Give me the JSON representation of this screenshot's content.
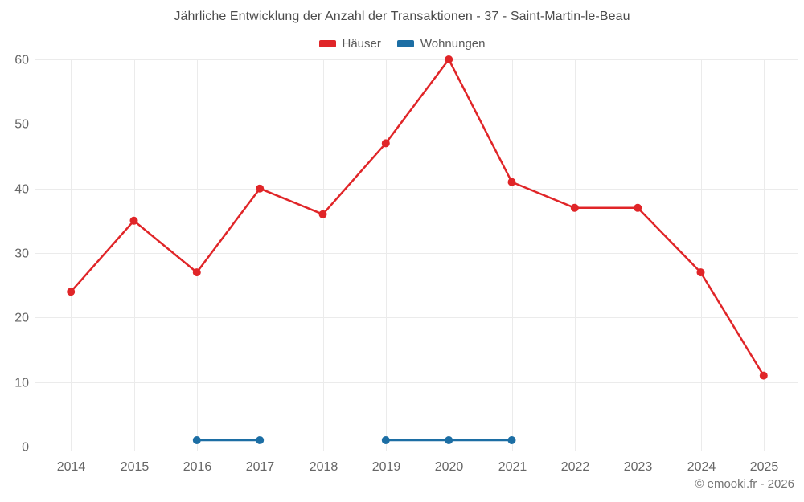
{
  "footer": {
    "copyright": "© emooki.fr - 2026"
  },
  "chart_data": {
    "type": "line",
    "title": "Jährliche Entwicklung der Anzahl der Transaktionen - 37 - Saint-Martin-le-Beau",
    "x": [
      "2014",
      "2015",
      "2016",
      "2017",
      "2018",
      "2019",
      "2020",
      "2021",
      "2022",
      "2023",
      "2024",
      "2025"
    ],
    "series": [
      {
        "name": "Häuser",
        "color": "#e02528",
        "values": [
          24,
          35,
          27,
          40,
          36,
          47,
          60,
          41,
          37,
          37,
          27,
          11
        ]
      },
      {
        "name": "Wohnungen",
        "color": "#1c6ea4",
        "values": [
          null,
          null,
          1,
          1,
          null,
          1,
          1,
          1,
          null,
          null,
          null,
          null
        ]
      }
    ],
    "xlabel": "",
    "ylabel": "",
    "ylim": [
      0,
      60
    ],
    "ytick_step": 10,
    "yticks": [
      0,
      10,
      20,
      30,
      40,
      50,
      60
    ],
    "grid": true,
    "legend_position": "top",
    "theme": {
      "grid": "#ebebeb",
      "axis": "#c9c9c9",
      "tick_label": "#666666",
      "title_text": "#4c4c4c",
      "legend_text": "#595959",
      "copyright_text": "#757575",
      "background": "#ffffff"
    }
  }
}
